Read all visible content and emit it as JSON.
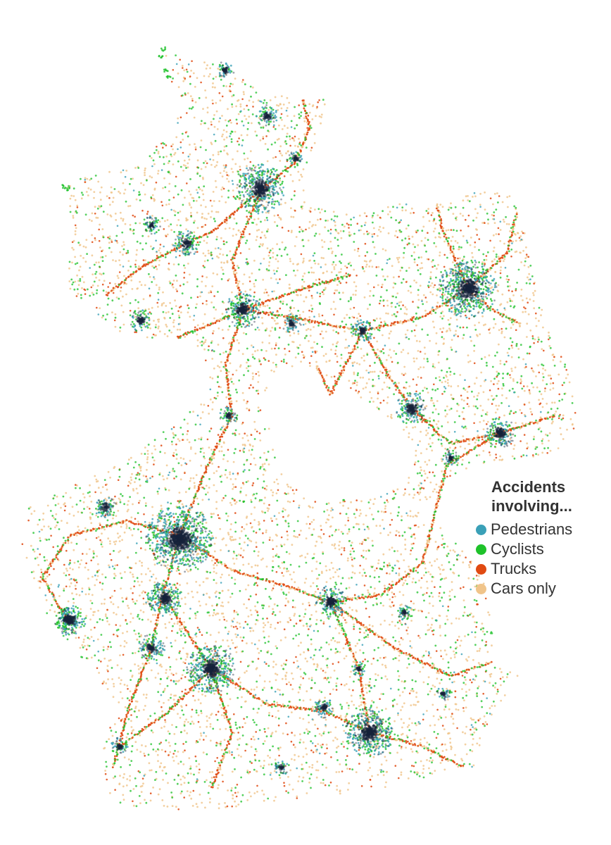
{
  "legend": {
    "title": "Accidents involving...",
    "items": [
      {
        "key": "pedestrians",
        "label": "Pedestrians",
        "color": "#3aa0b7"
      },
      {
        "key": "cyclists",
        "label": "Cyclists",
        "color": "#1ec22a"
      },
      {
        "key": "trucks",
        "label": "Trucks",
        "color": "#e04a12"
      },
      {
        "key": "cars",
        "label": "Cars only",
        "color": "#f0c48a"
      }
    ]
  },
  "colors": {
    "cluster": "#16233a",
    "background": "#ffffff"
  }
}
